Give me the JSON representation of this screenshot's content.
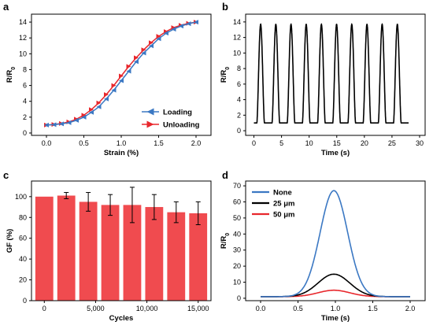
{
  "figure": {
    "panel_letters": [
      "a",
      "b",
      "c",
      "d"
    ]
  },
  "chart_data": [
    {
      "panel": "a",
      "type": "line",
      "xlabel": "Strain (%)",
      "ylabel": "R/R0",
      "xlim": [
        -0.2,
        2.2
      ],
      "ylim": [
        -0.3,
        15
      ],
      "xticks": [
        "0.0",
        "0.5",
        "1.0",
        "1.5",
        "2.0"
      ],
      "xtick_values": [
        0,
        0.5,
        1.0,
        1.5,
        2.0
      ],
      "yticks": [
        "0",
        "2",
        "4",
        "6",
        "8",
        "10",
        "12",
        "14"
      ],
      "ytick_values": [
        0,
        2,
        4,
        6,
        8,
        10,
        12,
        14
      ],
      "legend_position": "bottom-right",
      "series": [
        {
          "name": "Loading",
          "color": "#3b78c3",
          "marker": "triangle-left",
          "x": [
            0.0,
            0.1,
            0.2,
            0.3,
            0.4,
            0.5,
            0.6,
            0.7,
            0.8,
            0.9,
            1.0,
            1.1,
            1.2,
            1.3,
            1.4,
            1.5,
            1.6,
            1.7,
            1.8,
            1.9,
            2.0
          ],
          "y": [
            1.0,
            1.05,
            1.15,
            1.3,
            1.6,
            2.0,
            2.6,
            3.3,
            4.3,
            5.4,
            6.6,
            7.8,
            9.0,
            10.1,
            11.0,
            11.9,
            12.6,
            13.1,
            13.5,
            13.8,
            14.0
          ]
        },
        {
          "name": "Unloading",
          "color": "#e8272c",
          "marker": "triangle-right",
          "x": [
            0.0,
            0.1,
            0.2,
            0.3,
            0.4,
            0.5,
            0.6,
            0.7,
            0.8,
            0.9,
            1.0,
            1.1,
            1.2,
            1.3,
            1.4,
            1.5,
            1.6,
            1.7,
            1.8,
            1.9,
            2.0
          ],
          "y": [
            1.0,
            1.08,
            1.2,
            1.4,
            1.75,
            2.25,
            2.95,
            3.8,
            4.85,
            6.0,
            7.2,
            8.4,
            9.5,
            10.5,
            11.4,
            12.2,
            12.8,
            13.3,
            13.6,
            13.85,
            14.0
          ]
        }
      ]
    },
    {
      "panel": "b",
      "type": "line",
      "xlabel": "Time (s)",
      "ylabel": "R/R0",
      "xlim": [
        -1.5,
        31
      ],
      "ylim": [
        -0.6,
        15
      ],
      "xticks": [
        "0",
        "5",
        "10",
        "15",
        "20",
        "25",
        "30"
      ],
      "xtick_values": [
        0,
        5,
        10,
        15,
        20,
        25,
        30
      ],
      "yticks": [
        "0",
        "2",
        "4",
        "6",
        "8",
        "10",
        "12",
        "14"
      ],
      "ytick_values": [
        0,
        2,
        4,
        6,
        8,
        10,
        12,
        14
      ],
      "signal": {
        "baseline": 1.0,
        "peak": 13.7,
        "period_s": 2.75,
        "cycles": 10,
        "start_s": 0,
        "end_s": 28,
        "color": "#000000"
      }
    },
    {
      "panel": "c",
      "type": "bar",
      "xlabel": "Cycles",
      "ylabel": "GF (%)",
      "xlim": [
        -1250,
        16250
      ],
      "ylim": [
        0,
        115
      ],
      "xticks": [
        "0",
        "5,000",
        "10,000",
        "15,000"
      ],
      "xtick_values": [
        0,
        5000,
        10000,
        15000
      ],
      "yticks": [
        "0",
        "20",
        "40",
        "60",
        "80",
        "100"
      ],
      "ytick_values": [
        0,
        20,
        40,
        60,
        80,
        100
      ],
      "bar_color": "#f04b4f",
      "bar_width_data": 1750,
      "x": [
        0,
        2143,
        4286,
        6429,
        8571,
        10714,
        12857,
        15000
      ],
      "values": [
        100,
        101,
        95,
        92,
        92,
        90,
        85,
        84
      ],
      "errors": [
        0,
        3,
        9,
        10,
        17,
        12,
        10,
        11
      ]
    },
    {
      "panel": "d",
      "type": "line",
      "xlabel": "Time (s)",
      "ylabel": "R/R0",
      "xlim": [
        -0.2,
        2.2
      ],
      "ylim": [
        -1.5,
        73
      ],
      "xticks": [
        "0.0",
        "0.5",
        "1.0",
        "1.5",
        "2.0"
      ],
      "xtick_values": [
        0,
        0.5,
        1.0,
        1.5,
        2.0
      ],
      "yticks": [
        "0",
        "10",
        "20",
        "30",
        "40",
        "50",
        "60",
        "70"
      ],
      "ytick_values": [
        0,
        10,
        20,
        30,
        40,
        50,
        60,
        70
      ],
      "legend_position": "top-left",
      "series": [
        {
          "name": "None",
          "color": "#3b78c3",
          "peak": 67,
          "center": 0.98,
          "width": 0.26
        },
        {
          "name": "25 μm",
          "color": "#000000",
          "peak": 15,
          "center": 0.98,
          "width": 0.3
        },
        {
          "name": "50 μm",
          "color": "#e8272c",
          "peak": 5,
          "center": 0.98,
          "width": 0.3
        }
      ],
      "baseline": 1.0
    }
  ]
}
